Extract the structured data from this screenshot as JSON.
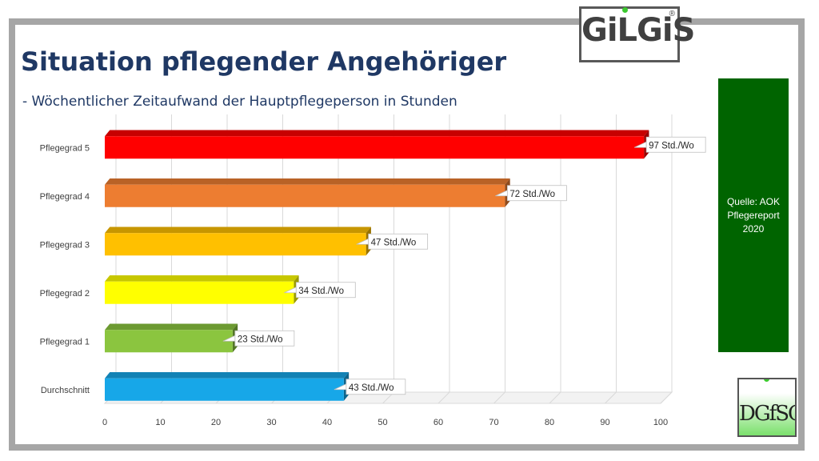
{
  "header": {
    "title": "Situation pflegender Angehöriger",
    "subtitle": "-  Wöchentlicher Zeitaufwand der Hauptpflegeperson in Stunden"
  },
  "logos": {
    "gilgis": "GiLGiS",
    "gilgis_mark": "®",
    "dgfsg": "DGfSG"
  },
  "source": {
    "text": "Quelle: AOK Pflegereport 2020"
  },
  "chart_data": {
    "type": "bar",
    "orientation": "horizontal",
    "title": "",
    "xlabel": "",
    "ylabel": "",
    "xlim": [
      0,
      100
    ],
    "ticks": [
      0,
      10,
      20,
      30,
      40,
      50,
      60,
      70,
      80,
      90,
      100
    ],
    "grid": true,
    "categories": [
      "Pflegegrad 5",
      "Pflegegrad 4",
      "Pflegegrad 3",
      "Pflegegrad 2",
      "Pflegegrad 1",
      "Durchschnitt"
    ],
    "values": [
      97,
      72,
      47,
      34,
      23,
      43
    ],
    "data_labels": [
      "97 Std./Wo",
      "72 Std./Wo",
      "47 Std./Wo",
      "34 Std./Wo",
      "23 Std./Wo",
      "43 Std./Wo"
    ],
    "colors": [
      "#ff0000",
      "#ed7d31",
      "#ffc000",
      "#ffff00",
      "#8bc53f",
      "#17a7e8"
    ]
  }
}
